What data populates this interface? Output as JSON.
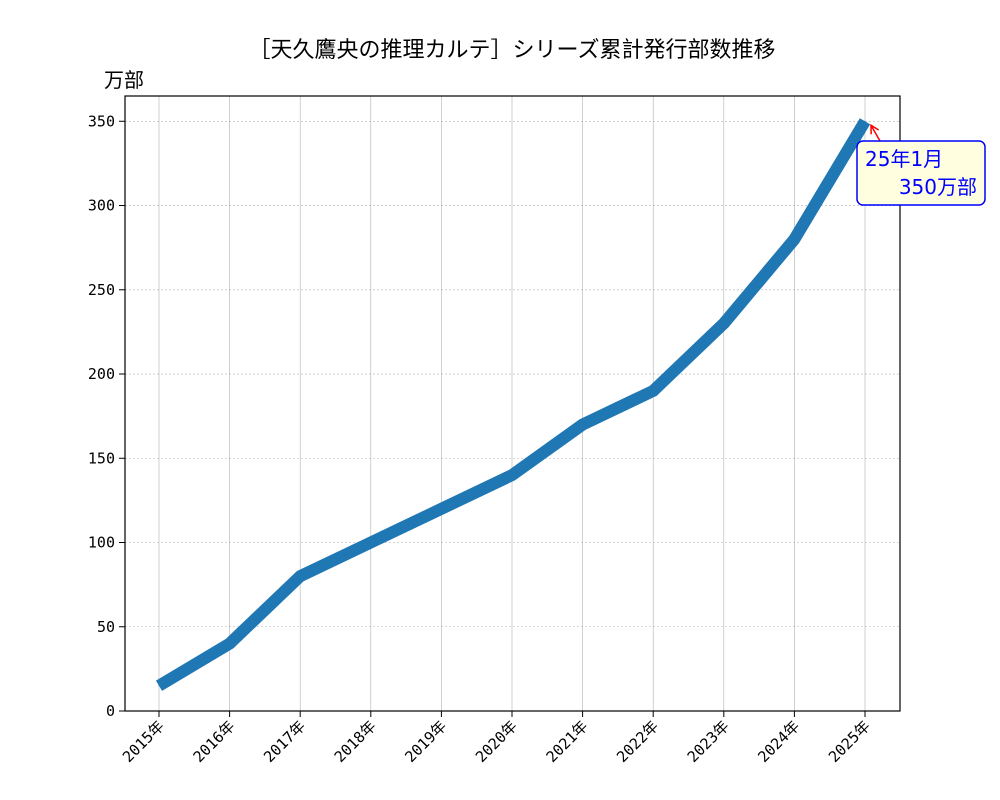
{
  "chart_data": {
    "type": "line",
    "title": "［天久鷹央の推理カルテ］シリーズ累計発行部数推移",
    "ylabel": "万部",
    "xlabel": "",
    "categories": [
      "2015年",
      "2016年",
      "2017年",
      "2018年",
      "2019年",
      "2020年",
      "2021年",
      "2022年",
      "2023年",
      "2024年",
      "2025年"
    ],
    "series": [
      {
        "values": [
          15,
          40,
          80,
          100,
          120,
          140,
          170,
          190,
          230,
          280,
          350
        ]
      }
    ],
    "ylim": [
      0,
      365
    ],
    "yticks": [
      0,
      50,
      100,
      150,
      200,
      250,
      300,
      350
    ],
    "grid": true,
    "line_color": "#1f77b4",
    "annotation": {
      "line1": "25年1月",
      "line2": "350万部",
      "target_index": 10,
      "text_color": "#0000ff",
      "box_fill": "#ffffe0",
      "box_border": "#0000ff",
      "arrow_color": "#ff0000"
    }
  }
}
